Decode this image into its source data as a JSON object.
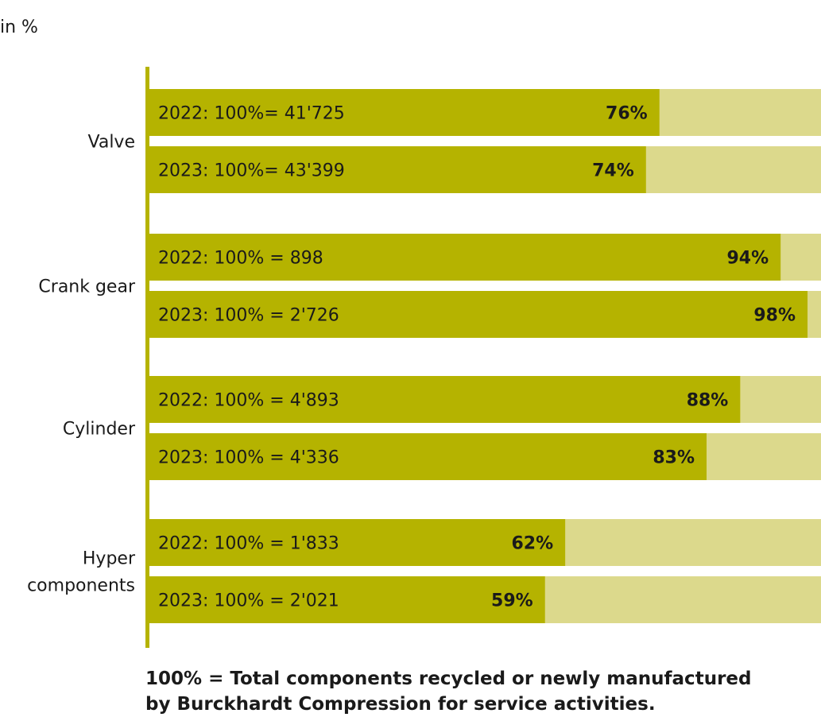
{
  "header": {
    "unit_label": "in %"
  },
  "chart_data": {
    "type": "bar",
    "orientation": "horizontal",
    "stacked_remainder": true,
    "xlim": [
      0,
      100
    ],
    "grid": false,
    "legend": "none",
    "colors": {
      "value": "#b5b300",
      "remainder": "#dcd98c",
      "axis": "#b5b300",
      "label": "#1a1a1a"
    },
    "groups": [
      {
        "category": [
          "Valve"
        ],
        "bars": [
          {
            "label": "2022: 100%= 41'725",
            "value": 76,
            "value_label": "76%"
          },
          {
            "label": "2023: 100%= 43'399",
            "value": 74,
            "value_label": "74%"
          }
        ]
      },
      {
        "category": [
          "Crank gear"
        ],
        "bars": [
          {
            "label": "2022: 100% = 898",
            "value": 94,
            "value_label": "94%"
          },
          {
            "label": "2023: 100% = 2'726",
            "value": 98,
            "value_label": "98%"
          }
        ]
      },
      {
        "category": [
          "Cylinder"
        ],
        "bars": [
          {
            "label": "2022: 100% = 4'893",
            "value": 88,
            "value_label": "88%"
          },
          {
            "label": "2023: 100% = 4'336",
            "value": 83,
            "value_label": "83%"
          }
        ]
      },
      {
        "category": [
          "Hyper",
          "components"
        ],
        "bars": [
          {
            "label": "2022: 100% = 1'833",
            "value": 62,
            "value_label": "62%"
          },
          {
            "label": "2023: 100% = 2'021",
            "value": 59,
            "value_label": "59%"
          }
        ]
      }
    ]
  },
  "footnote": {
    "line1": "100% = Total components recycled or newly manufactured",
    "line2": "by Burckhardt Compression for service activities."
  }
}
